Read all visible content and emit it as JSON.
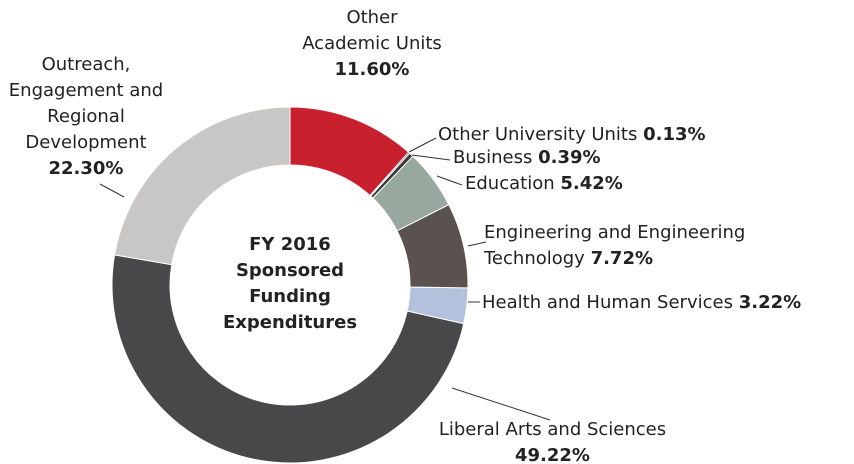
{
  "chart_data": {
    "type": "donut",
    "title": "FY 2016 Sponsored Funding Expenditures",
    "categories": [
      "Other Academic Units",
      "Other University Units",
      "Business",
      "Education",
      "Engineering and Engineering Technology",
      "Health and Human Services",
      "Liberal Arts and Sciences",
      "Outreach, Engagement and Regional Development"
    ],
    "values": [
      11.6,
      0.13,
      0.39,
      5.42,
      7.72,
      3.22,
      49.22,
      22.3
    ],
    "value_labels": [
      "11.60%",
      "0.13%",
      "0.39%",
      "5.42%",
      "7.72%",
      "3.22%",
      "49.22%",
      "22.30%"
    ],
    "colors": [
      "#c8202f",
      "#2e2e2e",
      "#3a3a3a",
      "#98a89f",
      "#5b5250",
      "#b4c1dc",
      "#48484b",
      "#c8c7c5"
    ]
  }
}
